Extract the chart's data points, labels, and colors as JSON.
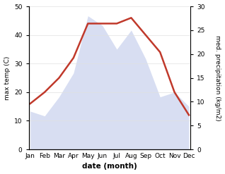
{
  "months": [
    "Jan",
    "Feb",
    "Mar",
    "Apr",
    "May",
    "Jun",
    "Jul",
    "Aug",
    "Sep",
    "Oct",
    "Nov",
    "Dec"
  ],
  "temp": [
    16,
    20,
    25,
    32,
    44,
    44,
    44,
    46,
    40,
    34,
    20,
    12
  ],
  "precip": [
    8,
    7,
    11,
    16,
    28,
    26,
    21,
    25,
    19,
    11,
    12,
    9
  ],
  "temp_color": "#c0392b",
  "precip_color": "#b8c4e8",
  "xlabel": "date (month)",
  "ylabel_left": "max temp (C)",
  "ylabel_right": "med. precipitation (kg/m2)",
  "ylim_left": [
    0,
    50
  ],
  "ylim_right": [
    0,
    30
  ],
  "yticks_left": [
    0,
    10,
    20,
    30,
    40,
    50
  ],
  "yticks_right": [
    0,
    5,
    10,
    15,
    20,
    25,
    30
  ],
  "bg_color": "#ffffff",
  "temp_linewidth": 1.8,
  "precip_alpha": 0.55
}
